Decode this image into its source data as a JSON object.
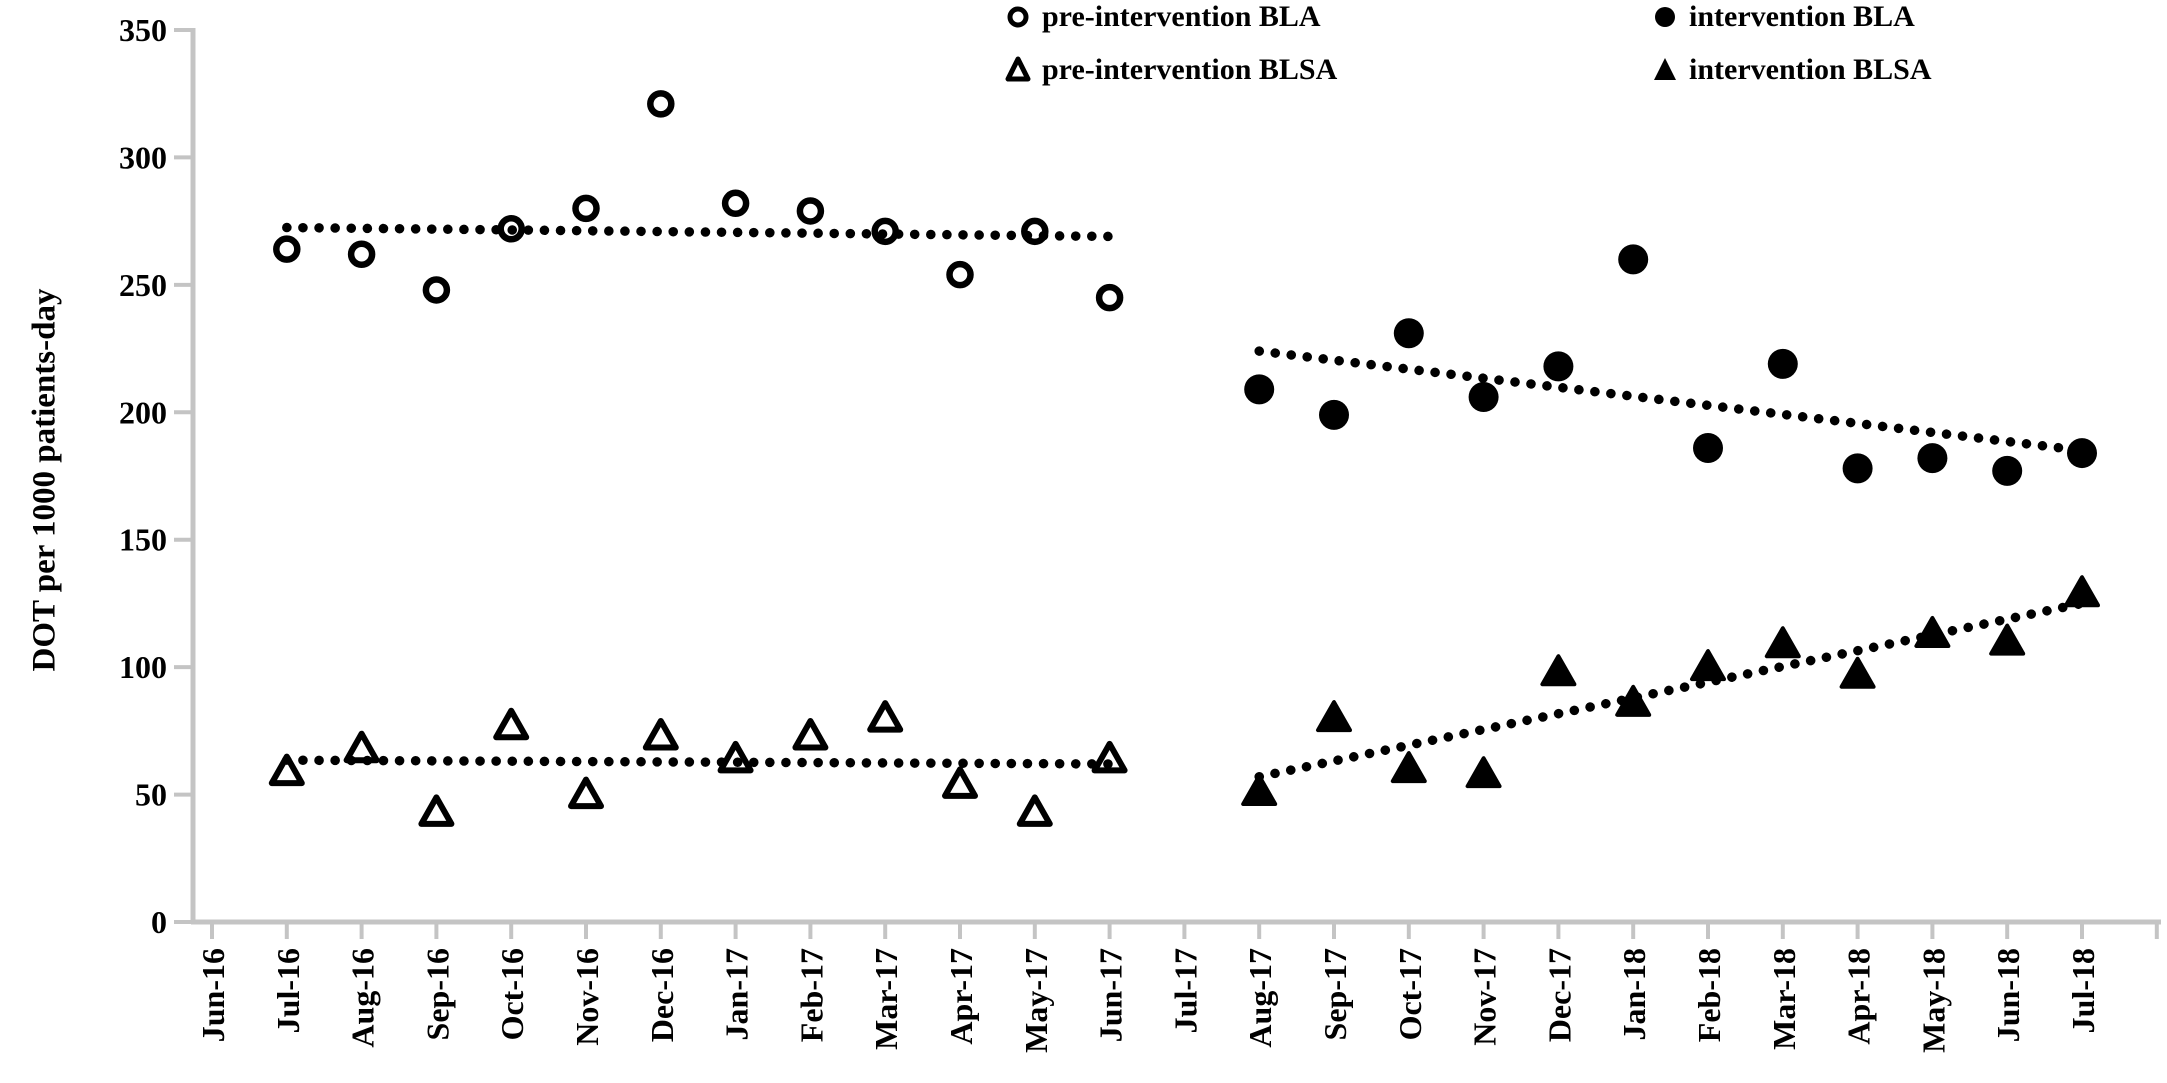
{
  "chart_data": {
    "type": "scatter",
    "title": "",
    "ylabel": "DOT per 1000 patients-day",
    "xlabel": "",
    "ylim": [
      0,
      350
    ],
    "y_ticks": [
      0,
      50,
      100,
      150,
      200,
      250,
      300,
      350
    ],
    "grid": false,
    "legend_position": "top",
    "x_categories": [
      "Jun-16",
      "Jul-16",
      "Aug-16",
      "Sep-16",
      "Oct-16",
      "Nov-16",
      "Dec-16",
      "Jan-17",
      "Feb-17",
      "Mar-17",
      "Apr-17",
      "May-17",
      "Jun-17",
      "Jul-17",
      "Aug-17",
      "Sep-17",
      "Oct-17",
      "Nov-17",
      "Dec-17",
      "Jan-18",
      "Feb-18",
      "Mar-18",
      "Apr-18",
      "May-18",
      "Jun-18",
      "Jul-18"
    ],
    "series": [
      {
        "name": "pre-intervention BLA",
        "marker": "open-circle",
        "color": "#000000",
        "points": [
          [
            "Jul-16",
            264
          ],
          [
            "Aug-16",
            262
          ],
          [
            "Sep-16",
            248
          ],
          [
            "Oct-16",
            272
          ],
          [
            "Nov-16",
            280
          ],
          [
            "Dec-16",
            321
          ],
          [
            "Jan-17",
            282
          ],
          [
            "Feb-17",
            279
          ],
          [
            "Mar-17",
            271
          ],
          [
            "Apr-17",
            254
          ],
          [
            "May-17",
            271
          ],
          [
            "Jun-17",
            245
          ]
        ]
      },
      {
        "name": "pre-intervention BLSA",
        "marker": "open-triangle",
        "color": "#000000",
        "points": [
          [
            "Jul-16",
            59
          ],
          [
            "Aug-16",
            68
          ],
          [
            "Sep-16",
            43
          ],
          [
            "Oct-16",
            77
          ],
          [
            "Nov-16",
            50
          ],
          [
            "Dec-16",
            73
          ],
          [
            "Jan-17",
            64
          ],
          [
            "Feb-17",
            73
          ],
          [
            "Mar-17",
            80
          ],
          [
            "Apr-17",
            54
          ],
          [
            "May-17",
            43
          ],
          [
            "Jun-17",
            64
          ]
        ]
      },
      {
        "name": "intervention BLA",
        "marker": "filled-circle",
        "color": "#000000",
        "points": [
          [
            "Aug-17",
            209
          ],
          [
            "Sep-17",
            199
          ],
          [
            "Oct-17",
            231
          ],
          [
            "Nov-17",
            206
          ],
          [
            "Dec-17",
            218
          ],
          [
            "Jan-18",
            260
          ],
          [
            "Feb-18",
            186
          ],
          [
            "Mar-18",
            219
          ],
          [
            "Apr-18",
            178
          ],
          [
            "May-18",
            182
          ],
          [
            "Jun-18",
            177
          ],
          [
            "Jul-18",
            184
          ]
        ]
      },
      {
        "name": "intervention BLSA",
        "marker": "filled-triangle",
        "color": "#000000",
        "points": [
          [
            "Aug-17",
            51
          ],
          [
            "Sep-17",
            80
          ],
          [
            "Oct-17",
            60
          ],
          [
            "Nov-17",
            58
          ],
          [
            "Dec-17",
            98
          ],
          [
            "Jan-18",
            86
          ],
          [
            "Feb-18",
            100
          ],
          [
            "Mar-18",
            109
          ],
          [
            "Apr-18",
            97
          ],
          [
            "May-18",
            113
          ],
          [
            "Jun-18",
            110
          ],
          [
            "Jul-18",
            129
          ]
        ]
      }
    ],
    "trendlines": [
      {
        "series": "pre-intervention BLA",
        "style": "dotted",
        "from": [
          "Jul-16",
          272.5
        ],
        "to": [
          "Jun-17",
          269
        ]
      },
      {
        "series": "pre-intervention BLSA",
        "style": "dotted",
        "from": [
          "Jul-16",
          63.5
        ],
        "to": [
          "Jun-17",
          62
        ]
      },
      {
        "series": "intervention BLA",
        "style": "dotted",
        "from": [
          "Aug-17",
          224
        ],
        "to": [
          "Jul-18",
          185
        ]
      },
      {
        "series": "intervention BLSA",
        "style": "dotted",
        "from": [
          "Aug-17",
          57
        ],
        "to": [
          "Jul-18",
          125
        ]
      }
    ]
  },
  "legend": {
    "items": [
      {
        "label": "pre-intervention BLA",
        "marker": "open-circle"
      },
      {
        "label": "intervention BLA",
        "marker": "filled-circle"
      },
      {
        "label": "pre-intervention BLSA",
        "marker": "open-triangle"
      },
      {
        "label": "intervention BLSA",
        "marker": "filled-triangle"
      }
    ]
  },
  "colors": {
    "data": "#000000",
    "axis": "#c4c4c4",
    "background": "#ffffff"
  }
}
